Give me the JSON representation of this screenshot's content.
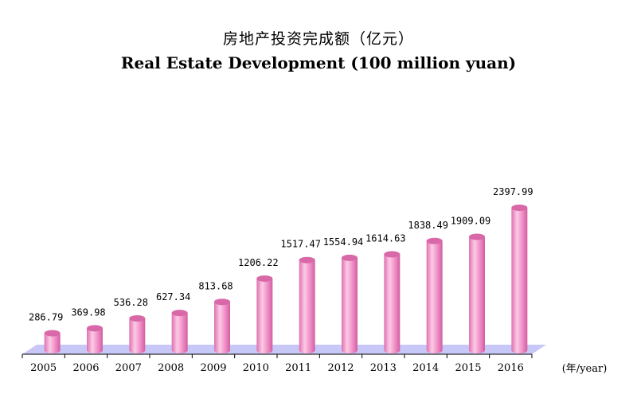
{
  "chart_data": {
    "type": "bar",
    "title": "房地产投资完成额（亿元）",
    "subtitle": "Real Estate Development (100 million yuan)",
    "xlabel": "(年/year)",
    "ylabel": "",
    "categories": [
      "2005",
      "2006",
      "2007",
      "2008",
      "2009",
      "2010",
      "2011",
      "2012",
      "2013",
      "2014",
      "2015",
      "2016"
    ],
    "values": [
      286.79,
      369.98,
      536.28,
      627.34,
      813.68,
      1206.22,
      1517.47,
      1554.94,
      1614.63,
      1838.49,
      1909.09,
      2397.99
    ],
    "value_labels": [
      "286.79",
      "369.98",
      "536.28",
      "627.34",
      "813.68",
      "1206.22",
      "1517.47",
      "1554.94",
      "1614.63",
      "1838.49",
      "1909.09",
      "2397.99"
    ],
    "ylim": [
      0,
      2700
    ],
    "grid": false,
    "legend": "none",
    "colors": {
      "bar": "#f090c8",
      "bar_light": "#fbd0e8",
      "bar_dark": "#d868a8",
      "floor": "#c8c8f8",
      "axis": "#000000"
    }
  }
}
